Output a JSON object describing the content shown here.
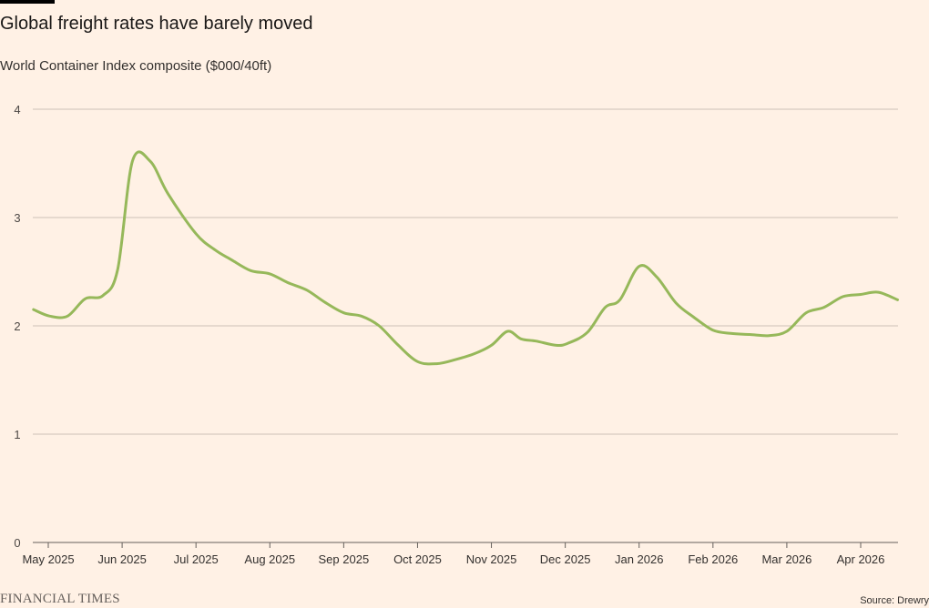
{
  "header": {
    "title": "Global freight rates have barely moved",
    "subtitle": "World Container Index composite ($000/40ft)"
  },
  "footer": {
    "brand": "FINANCIAL TIMES",
    "source": "Source: Drewry"
  },
  "colors": {
    "background": "#fff1e5",
    "line": "#96b85a",
    "grid": "#ccc1b7"
  },
  "chart_data": {
    "type": "line",
    "title": "Global freight rates have barely moved",
    "subtitle": "World Container Index composite ($000/40ft)",
    "xlabel": "",
    "ylabel": "",
    "ylim": [
      0,
      4
    ],
    "yticks": [
      0,
      1,
      2,
      3,
      4
    ],
    "xlim": [
      0,
      11.7
    ],
    "xticks": [
      {
        "x": 0,
        "label": "May 2025"
      },
      {
        "x": 1,
        "label": "Jun 2025"
      },
      {
        "x": 2,
        "label": "Jul 2025"
      },
      {
        "x": 3,
        "label": "Aug 2025"
      },
      {
        "x": 4,
        "label": "Sep 2025"
      },
      {
        "x": 5,
        "label": "Oct 2025"
      },
      {
        "x": 6,
        "label": "Nov 2025"
      },
      {
        "x": 7,
        "label": "Dec 2025"
      },
      {
        "x": 8,
        "label": "Jan 2026"
      },
      {
        "x": 9,
        "label": "Feb 2026"
      },
      {
        "x": 10,
        "label": "Mar 2026"
      },
      {
        "x": 11,
        "label": "Apr 2026"
      }
    ],
    "grid": true,
    "series": [
      {
        "name": "World Container Index composite",
        "x": [
          -0.2,
          0.02,
          0.26,
          0.5,
          0.74,
          0.94,
          1.14,
          1.38,
          1.62,
          2.0,
          2.26,
          2.48,
          2.74,
          3.0,
          3.24,
          3.5,
          3.74,
          4.0,
          4.24,
          4.48,
          4.74,
          5.0,
          5.26,
          5.52,
          5.76,
          6.0,
          6.22,
          6.4,
          6.6,
          6.88,
          7.04,
          7.3,
          7.54,
          7.74,
          8.0,
          8.24,
          8.5,
          8.74,
          9.0,
          9.24,
          9.5,
          9.76,
          10.0,
          10.26,
          10.5,
          10.76,
          11.0,
          11.24,
          11.5
        ],
        "values": [
          2.15,
          2.09,
          2.09,
          2.25,
          2.28,
          2.52,
          3.52,
          3.52,
          3.22,
          2.85,
          2.7,
          2.61,
          2.51,
          2.48,
          2.4,
          2.33,
          2.22,
          2.12,
          2.09,
          2.0,
          1.82,
          1.67,
          1.65,
          1.69,
          1.74,
          1.82,
          1.95,
          1.88,
          1.86,
          1.82,
          1.84,
          1.94,
          2.17,
          2.24,
          2.55,
          2.45,
          2.21,
          2.08,
          1.96,
          1.93,
          1.92,
          1.91,
          1.95,
          2.12,
          2.17,
          2.27,
          2.29,
          2.31,
          2.24
        ]
      }
    ]
  }
}
